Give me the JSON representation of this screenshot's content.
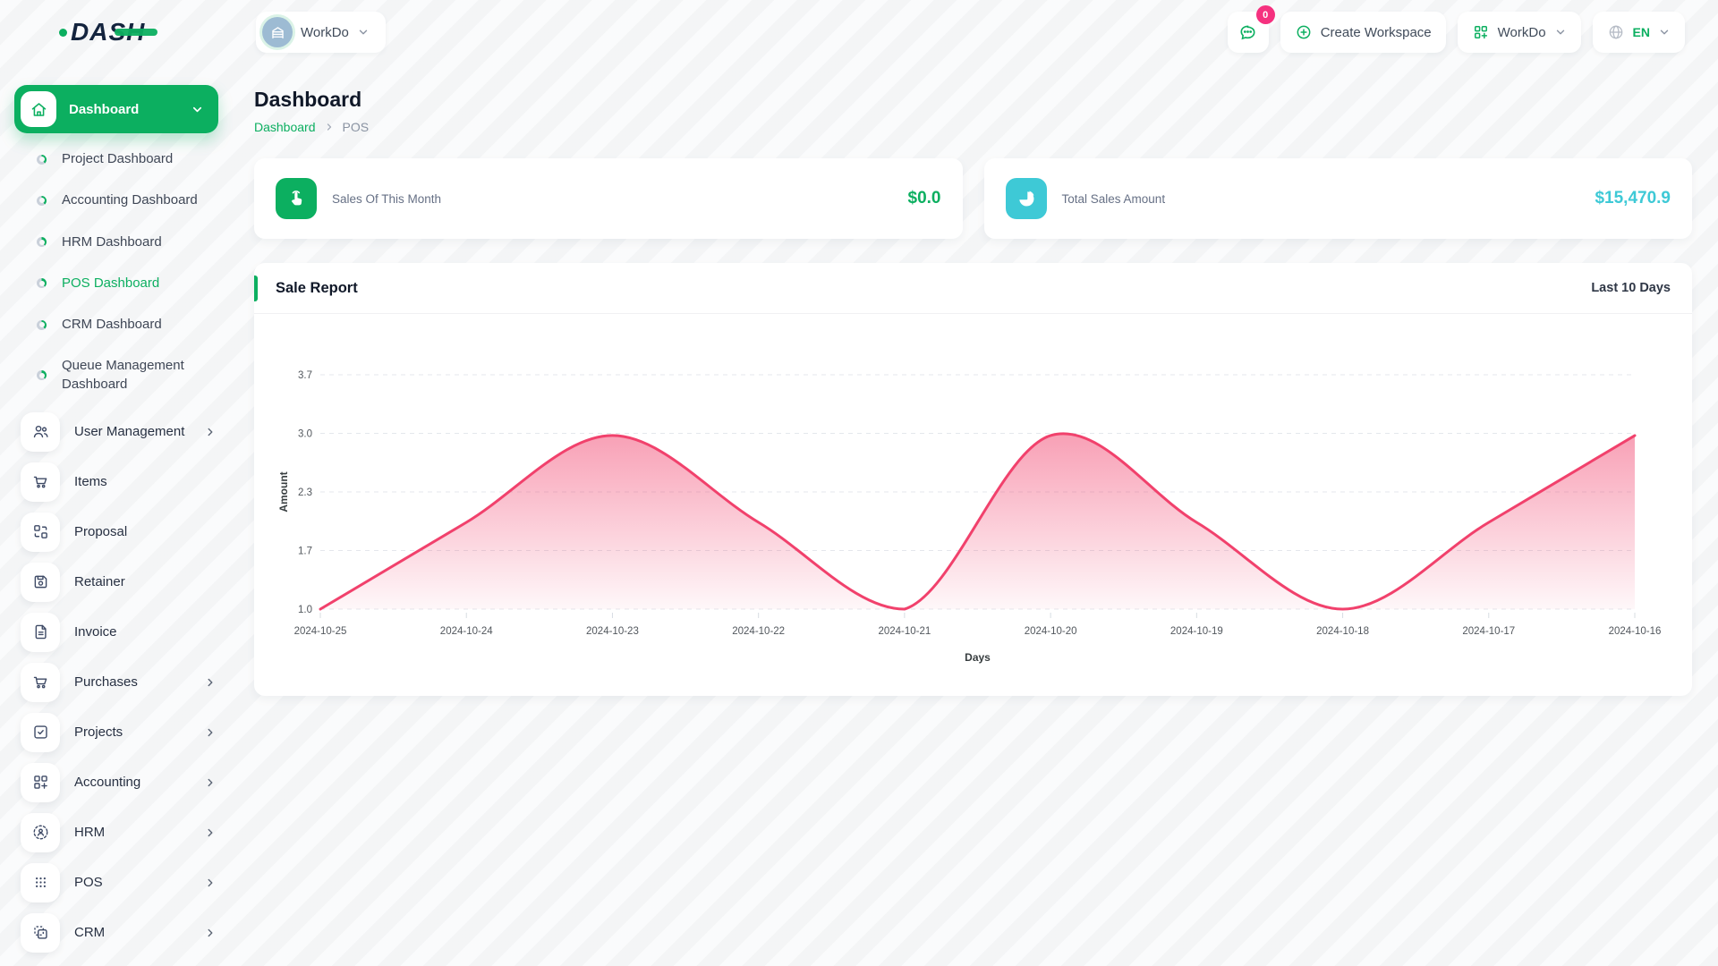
{
  "colors": {
    "primary": "#0CAF60",
    "accent-cyan": "#3EC9D6",
    "badge-pink": "#F5317F",
    "chart-pink": "#F1416C",
    "text-dark": "#1F2937",
    "icon-slate": "#3E4A66"
  },
  "brand": {
    "logo_text": "DASH"
  },
  "header": {
    "workspace_switcher": {
      "label": "WorkDo",
      "avatar_icon": "building-icon"
    },
    "messages": {
      "icon": "chat-bubble-icon",
      "badge_count": "0"
    },
    "create_workspace": {
      "label": "Create Workspace",
      "icon": "plus-circle-icon"
    },
    "workspace_menu": {
      "label": "WorkDo",
      "icon": "grid-plus-icon"
    },
    "language": {
      "label": "EN",
      "icon": "globe-icon"
    }
  },
  "sidebar": {
    "dashboard": {
      "label": "Dashboard",
      "icon": "home-icon"
    },
    "dashboard_children": [
      {
        "label": "Project Dashboard",
        "active": false
      },
      {
        "label": "Accounting Dashboard",
        "active": false
      },
      {
        "label": "HRM Dashboard",
        "active": false
      },
      {
        "label": "POS Dashboard",
        "active": true
      },
      {
        "label": "CRM Dashboard",
        "active": false
      },
      {
        "label": "Queue Management Dashboard",
        "active": false
      }
    ],
    "items": [
      {
        "label": "User Management",
        "icon": "users-icon",
        "has_children": true
      },
      {
        "label": "Items",
        "icon": "cart-icon",
        "has_children": false
      },
      {
        "label": "Proposal",
        "icon": "proposal-grid-icon",
        "has_children": false
      },
      {
        "label": "Retainer",
        "icon": "save-icon",
        "has_children": false
      },
      {
        "label": "Invoice",
        "icon": "invoice-document-icon",
        "has_children": false
      },
      {
        "label": "Purchases",
        "icon": "cart-icon",
        "has_children": true
      },
      {
        "label": "Projects",
        "icon": "check-square-icon",
        "has_children": true
      },
      {
        "label": "Accounting",
        "icon": "grid-plus-icon",
        "has_children": true
      },
      {
        "label": "HRM",
        "icon": "user-dashed-circle-icon",
        "has_children": true
      },
      {
        "label": "POS",
        "icon": "dots-grid-icon",
        "has_children": true
      },
      {
        "label": "CRM",
        "icon": "overlap-squares-icon",
        "has_children": true
      }
    ]
  },
  "page": {
    "title": "Dashboard",
    "breadcrumb_root": "Dashboard",
    "breadcrumb_current": "POS"
  },
  "stats": [
    {
      "label": "Sales Of This Month",
      "value": "$0.0",
      "icon": "tap-icon",
      "accent": "#0CAF60"
    },
    {
      "label": "Total Sales Amount",
      "value": "$15,470.9",
      "icon": "pie-chart-icon",
      "accent": "#3EC9D6"
    }
  ],
  "sale_report": {
    "title": "Sale Report",
    "period_label": "Last 10 Days"
  },
  "chart_data": {
    "type": "area",
    "title": "Sale Report",
    "x": [
      "2024-10-25",
      "2024-10-24",
      "2024-10-23",
      "2024-10-22",
      "2024-10-21",
      "2024-10-20",
      "2024-10-19",
      "2024-10-18",
      "2024-10-17",
      "2024-10-16"
    ],
    "series": [
      {
        "name": "Amount",
        "values": [
          1.0,
          2.0,
          3.0,
          2.0,
          1.0,
          3.0,
          2.0,
          1.0,
          2.0,
          3.0
        ]
      }
    ],
    "xlabel": "Days",
    "ylabel": "Amount",
    "ylim": [
      1.0,
      3.7
    ],
    "ytick_labels": [
      "3.7",
      "3.0",
      "2.3",
      "1.7",
      "1.0"
    ],
    "grid": "horizontal-dashed",
    "legend": "none",
    "line_color": "#F1416C",
    "fill": "vertical-pink-gradient"
  }
}
